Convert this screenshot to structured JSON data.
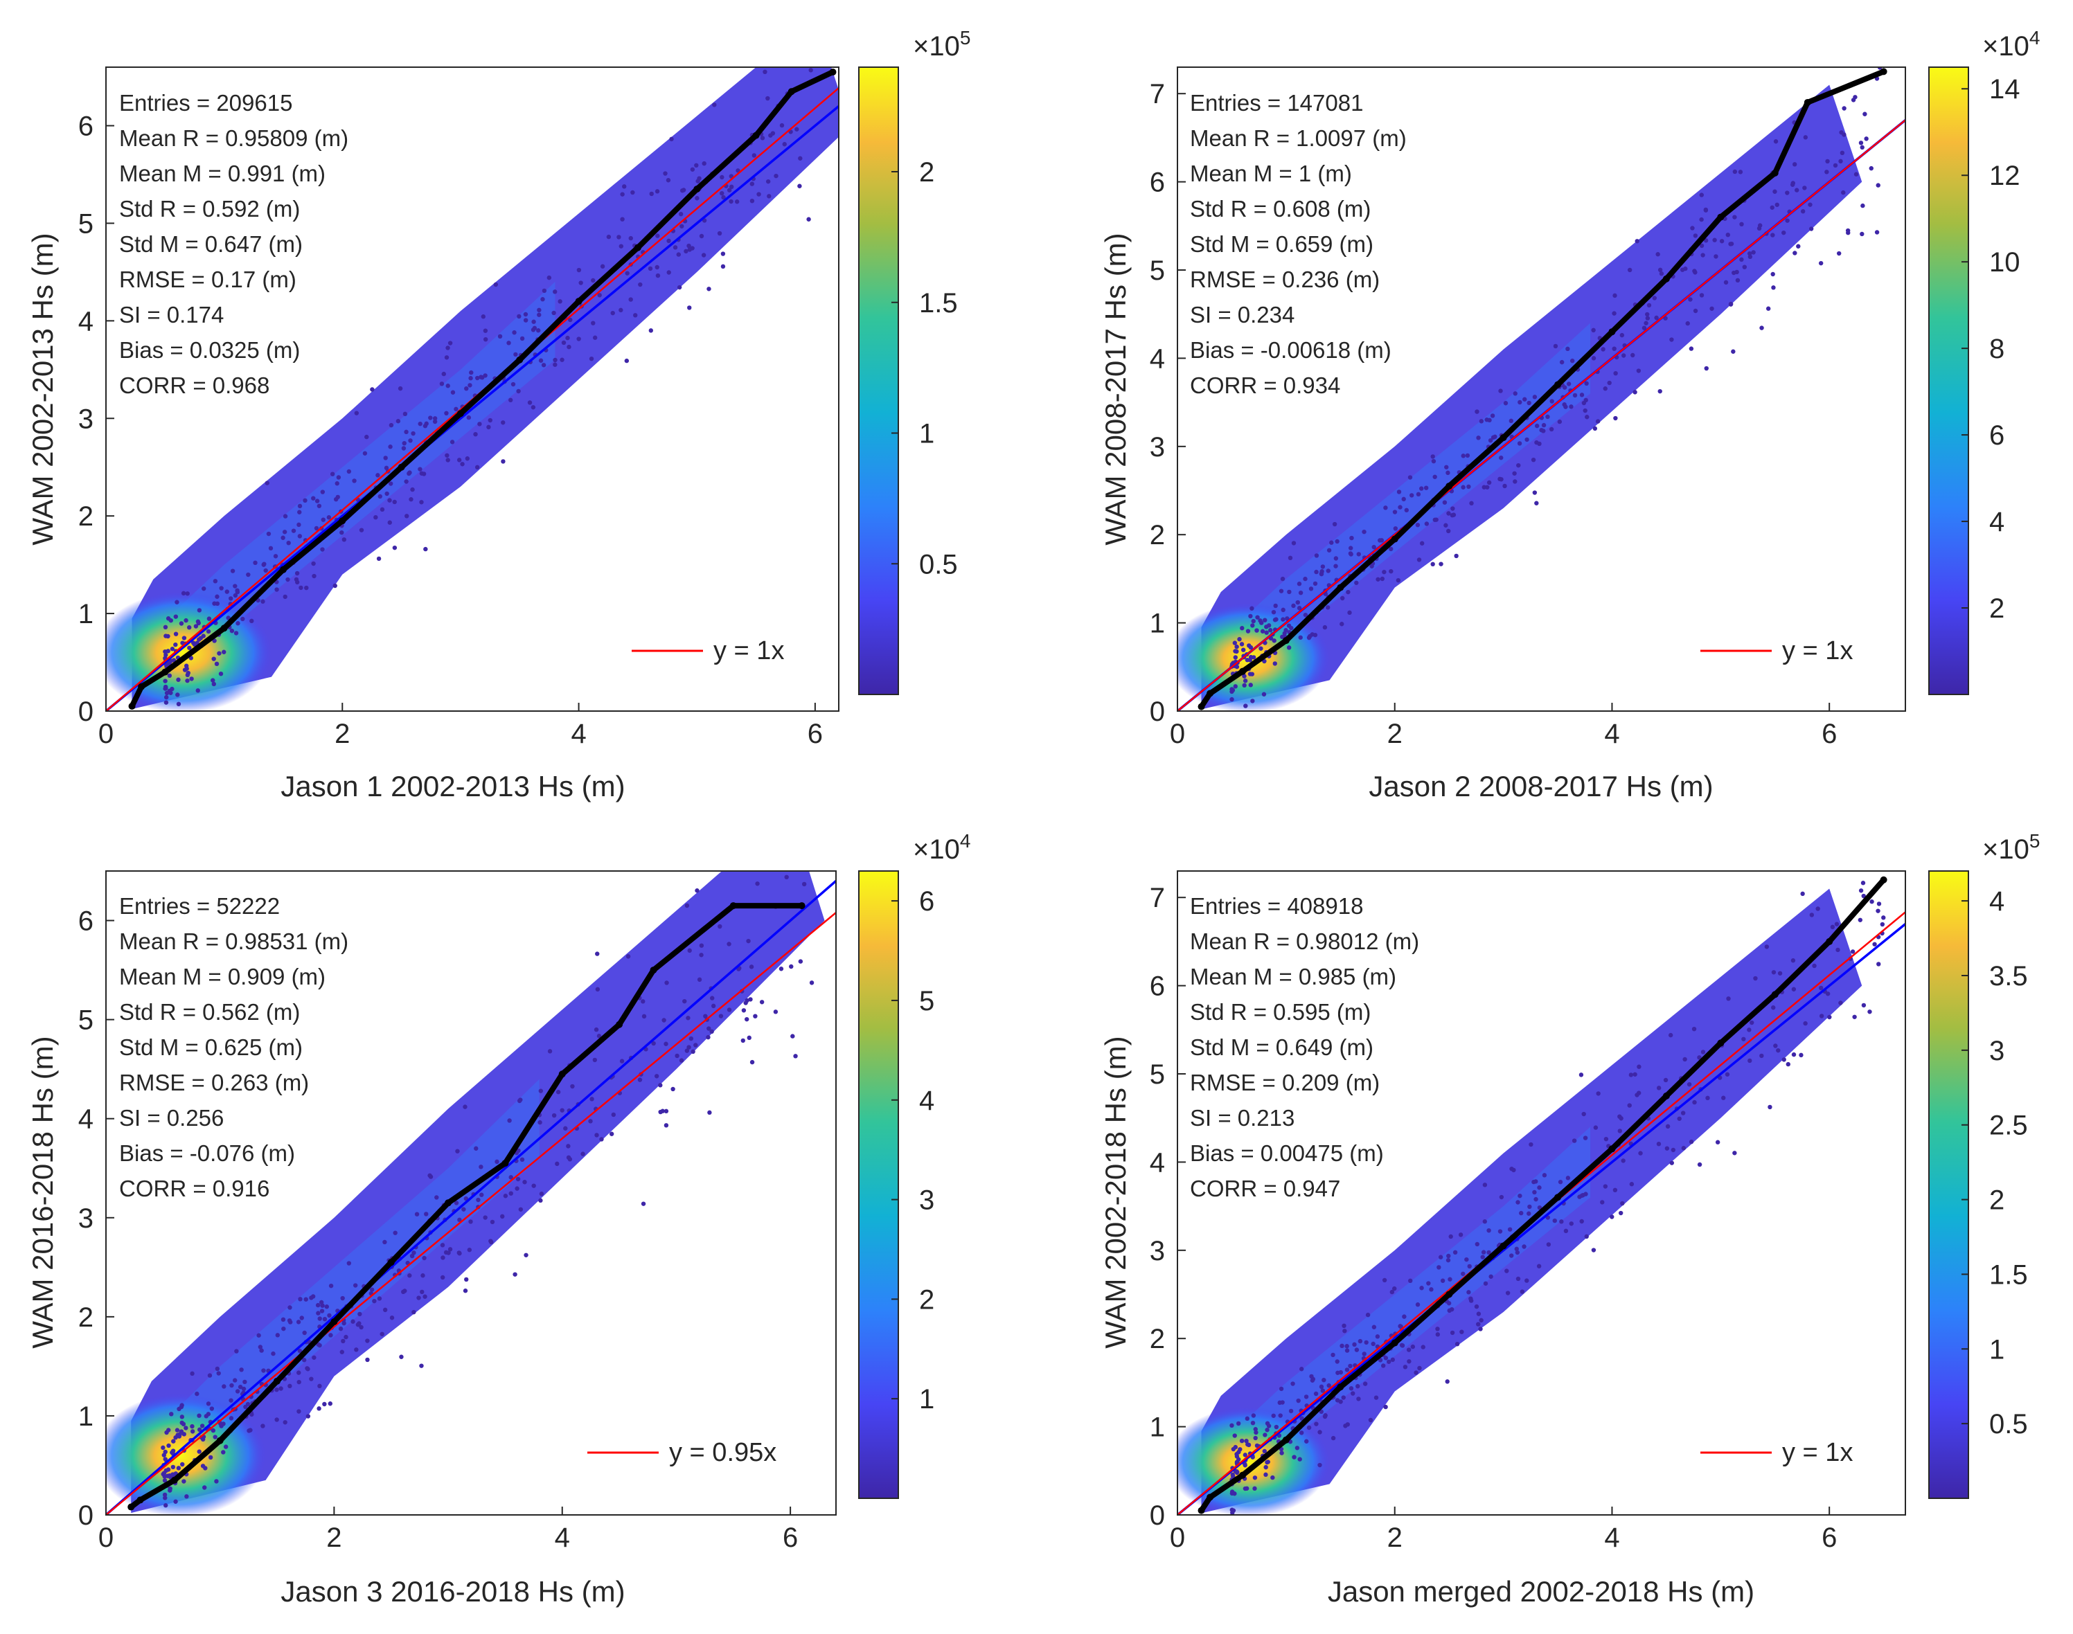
{
  "chart_data": [
    {
      "type": "scatter",
      "panel": "top-left",
      "xlabel": "Jason 1 2002-2013 Hs (m)",
      "ylabel": "WAM  2002-2013  Hs (m)",
      "xlim": [
        0,
        6.2
      ],
      "ylim": [
        0,
        6.6
      ],
      "xticks": [
        0,
        2,
        4,
        6
      ],
      "yticks": [
        0,
        1,
        2,
        3,
        4,
        5,
        6
      ],
      "stats": [
        "Entries = 209615",
        "Mean R = 0.95809 (m)",
        "Mean M = 0.991 (m)",
        "Std R = 0.592 (m)",
        "Std M = 0.647 (m)",
        "RMSE = 0.17 (m)",
        "SI = 0.174",
        "Bias = 0.0325 (m)",
        "CORR = 0.968"
      ],
      "legend": "y = 1x",
      "fit_slope": 1.03,
      "one_to_one_slope": 1.0,
      "qq": [
        [
          0.22,
          0.05
        ],
        [
          0.3,
          0.25
        ],
        [
          0.5,
          0.4
        ],
        [
          1,
          0.85
        ],
        [
          1.5,
          1.45
        ],
        [
          2,
          1.95
        ],
        [
          2.5,
          2.5
        ],
        [
          3,
          3.05
        ],
        [
          3.5,
          3.6
        ],
        [
          4,
          4.2
        ],
        [
          4.5,
          4.75
        ],
        [
          5,
          5.35
        ],
        [
          5.5,
          5.9
        ],
        [
          5.8,
          6.35
        ],
        [
          6.15,
          6.55
        ]
      ],
      "colorbar": {
        "exponent": "×10",
        "power": "5",
        "min": 0,
        "max": 2.4,
        "ticks": [
          0.5,
          1,
          1.5,
          2
        ]
      }
    },
    {
      "type": "scatter",
      "panel": "top-right",
      "xlabel": "Jason 2 2008-2017 Hs (m)",
      "ylabel": "WAM  2008-2017  Hs (m)",
      "xlim": [
        0,
        6.7
      ],
      "ylim": [
        0,
        7.3
      ],
      "xticks": [
        0,
        2,
        4,
        6
      ],
      "yticks": [
        0,
        1,
        2,
        3,
        4,
        5,
        6,
        7
      ],
      "stats": [
        "Entries = 147081",
        "Mean R = 1.0097 (m)",
        "Mean M = 1 (m)",
        "Std R = 0.608 (m)",
        "Std M = 0.659 (m)",
        "RMSE = 0.236 (m)",
        "SI = 0.234",
        "Bias = -0.00618 (m)",
        "CORR = 0.934"
      ],
      "legend": "y = 1x",
      "fit_slope": 1.0,
      "one_to_one_slope": 1.0,
      "qq": [
        [
          0.22,
          0.05
        ],
        [
          0.3,
          0.2
        ],
        [
          0.6,
          0.45
        ],
        [
          1,
          0.8
        ],
        [
          1.5,
          1.4
        ],
        [
          2,
          1.95
        ],
        [
          2.5,
          2.55
        ],
        [
          3,
          3.1
        ],
        [
          3.5,
          3.7
        ],
        [
          4,
          4.3
        ],
        [
          4.5,
          4.9
        ],
        [
          5,
          5.6
        ],
        [
          5.5,
          6.1
        ],
        [
          5.8,
          6.9
        ],
        [
          6.5,
          7.25
        ]
      ],
      "colorbar": {
        "exponent": "×10",
        "power": "4",
        "min": 0,
        "max": 14.5,
        "ticks": [
          2,
          4,
          6,
          8,
          10,
          12,
          14
        ]
      }
    },
    {
      "type": "scatter",
      "panel": "bottom-left",
      "xlabel": "Jason 3 2016-2018 Hs (m)",
      "ylabel": "WAM  2016-2018  Hs (m)",
      "xlim": [
        0,
        6.4
      ],
      "ylim": [
        0,
        6.5
      ],
      "xticks": [
        0,
        2,
        4,
        6
      ],
      "yticks": [
        0,
        1,
        2,
        3,
        4,
        5,
        6
      ],
      "stats": [
        "Entries = 52222",
        "Mean R = 0.98531 (m)",
        "Mean M = 0.909 (m)",
        "Std R = 0.562 (m)",
        "Std M = 0.625 (m)",
        "RMSE = 0.263 (m)",
        "SI = 0.256",
        "Bias = -0.076 (m)",
        "CORR = 0.916"
      ],
      "legend": "y = 0.95x",
      "fit_slope": 0.95,
      "one_to_one_slope": 1.0,
      "qq": [
        [
          0.22,
          0.08
        ],
        [
          0.3,
          0.15
        ],
        [
          0.6,
          0.35
        ],
        [
          1,
          0.75
        ],
        [
          1.5,
          1.35
        ],
        [
          2,
          1.95
        ],
        [
          2.5,
          2.55
        ],
        [
          3,
          3.15
        ],
        [
          3.5,
          3.55
        ],
        [
          4,
          4.45
        ],
        [
          4.5,
          4.95
        ],
        [
          4.8,
          5.5
        ],
        [
          5.5,
          6.15
        ],
        [
          6.1,
          6.15
        ]
      ],
      "colorbar": {
        "exponent": "×10",
        "power": "4",
        "min": 0,
        "max": 6.3,
        "ticks": [
          1,
          2,
          3,
          4,
          5,
          6
        ]
      }
    },
    {
      "type": "scatter",
      "panel": "bottom-right",
      "xlabel": "Jason merged 2002-2018 Hs (m)",
      "ylabel": "WAM  2002-2018  Hs (m)",
      "xlim": [
        0,
        6.7
      ],
      "ylim": [
        0,
        7.3
      ],
      "xticks": [
        0,
        2,
        4,
        6
      ],
      "yticks": [
        0,
        1,
        2,
        3,
        4,
        5,
        6,
        7
      ],
      "stats": [
        "Entries = 408918",
        "Mean R = 0.98012 (m)",
        "Mean M = 0.985 (m)",
        "Std R = 0.595 (m)",
        "Std M = 0.649 (m)",
        "RMSE = 0.209 (m)",
        "SI = 0.213",
        "Bias = 0.00475 (m)",
        "CORR = 0.947"
      ],
      "legend": "y = 1x",
      "fit_slope": 1.02,
      "one_to_one_slope": 1.0,
      "qq": [
        [
          0.22,
          0.05
        ],
        [
          0.3,
          0.2
        ],
        [
          0.6,
          0.45
        ],
        [
          1,
          0.85
        ],
        [
          1.5,
          1.45
        ],
        [
          2,
          1.95
        ],
        [
          2.5,
          2.5
        ],
        [
          3,
          3.05
        ],
        [
          3.5,
          3.6
        ],
        [
          4,
          4.15
        ],
        [
          4.5,
          4.75
        ],
        [
          5,
          5.35
        ],
        [
          5.5,
          5.9
        ],
        [
          6,
          6.5
        ],
        [
          6.5,
          7.2
        ]
      ],
      "colorbar": {
        "exponent": "×10",
        "power": "5",
        "min": 0,
        "max": 4.2,
        "ticks": [
          0.5,
          1,
          1.5,
          2,
          2.5,
          3,
          3.5,
          4
        ]
      }
    }
  ],
  "colors": {
    "fit_line": "#ff0000",
    "one_to_one_line": "#0000ff",
    "qq_points": "#000000",
    "scatter_low": "#3e26a8",
    "axis": "#262626"
  }
}
